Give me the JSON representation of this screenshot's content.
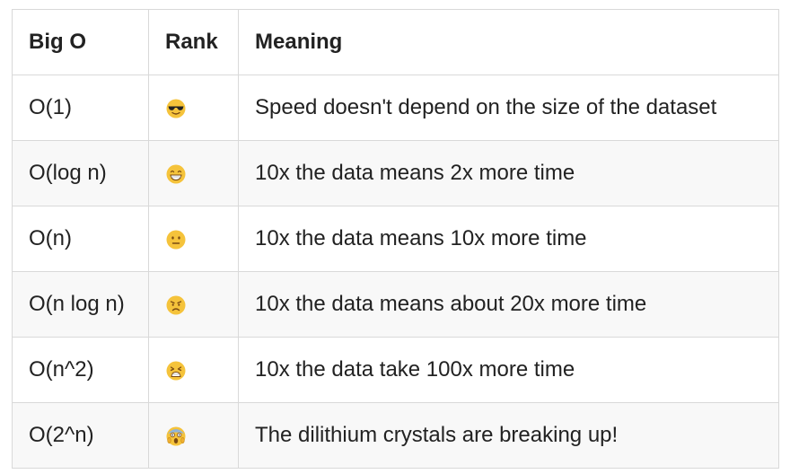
{
  "table": {
    "headers": [
      "Big O",
      "Rank",
      "Meaning"
    ],
    "rows": [
      {
        "big_o": "O(1)",
        "rank_icon": "sunglasses-face-icon",
        "meaning": "Speed doesn't depend on the size of the dataset"
      },
      {
        "big_o": "O(log n)",
        "rank_icon": "grinning-face-icon",
        "meaning": "10x the data means 2x more time"
      },
      {
        "big_o": "O(n)",
        "rank_icon": "neutral-face-icon",
        "meaning": "10x the data means 10x more time"
      },
      {
        "big_o": "O(n log n)",
        "rank_icon": "frowning-face-icon",
        "meaning": "10x the data means about 20x more time"
      },
      {
        "big_o": "O(n^2)",
        "rank_icon": "tired-face-icon",
        "meaning": "10x the data take 100x more time"
      },
      {
        "big_o": "O(2^n)",
        "rank_icon": "screaming-face-icon",
        "meaning": "The dilithium crystals are breaking up!"
      }
    ]
  },
  "colors": {
    "border": "#d9d9d9",
    "zebra": "#f8f8f8",
    "emoji_yellow": "#f5c33b"
  }
}
